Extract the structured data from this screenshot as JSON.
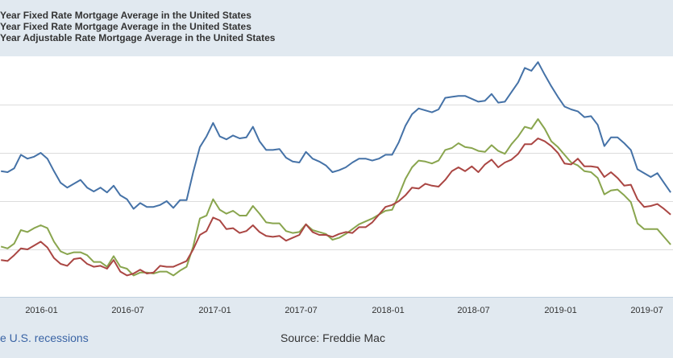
{
  "legend": [
    "Year Fixed Rate Mortgage Average in the United States",
    "Year Fixed Rate Mortgage Average in the United States",
    "Year Adjustable Rate Mortgage Average in the United States"
  ],
  "footer": {
    "recessions_link": "e U.S. recessions",
    "source": "Source: Freddie Mac"
  },
  "chart_data": {
    "type": "line",
    "title": "",
    "xlabel": "",
    "ylabel": "",
    "xlim": [
      "2015-10-06",
      "2019-08-27"
    ],
    "ylim": [
      2.5,
      5.0
    ],
    "grid": true,
    "y_gridlines": [
      3.0,
      3.5,
      4.0,
      4.5
    ],
    "legend_position": "top-left",
    "x_ticks": [
      {
        "date": "2016-01-01",
        "label": "2016-01"
      },
      {
        "date": "2016-07-01",
        "label": "2016-07"
      },
      {
        "date": "2017-01-01",
        "label": "2017-01"
      },
      {
        "date": "2017-07-01",
        "label": "2017-07"
      },
      {
        "date": "2018-01-01",
        "label": "2018-01"
      },
      {
        "date": "2018-07-01",
        "label": "2018-07"
      },
      {
        "date": "2019-01-01",
        "label": "2019-01"
      },
      {
        "date": "2019-07-01",
        "label": "2019-07"
      }
    ],
    "x": [
      "2015-10-08",
      "2015-10-22",
      "2015-11-05",
      "2015-11-19",
      "2015-12-03",
      "2015-12-17",
      "2015-12-31",
      "2016-01-14",
      "2016-01-28",
      "2016-02-11",
      "2016-02-25",
      "2016-03-10",
      "2016-03-24",
      "2016-04-07",
      "2016-04-21",
      "2016-05-05",
      "2016-05-19",
      "2016-06-02",
      "2016-06-16",
      "2016-06-30",
      "2016-07-14",
      "2016-07-28",
      "2016-08-11",
      "2016-08-25",
      "2016-09-08",
      "2016-09-22",
      "2016-10-06",
      "2016-10-20",
      "2016-11-03",
      "2016-11-17",
      "2016-12-01",
      "2016-12-15",
      "2016-12-29",
      "2017-01-12",
      "2017-01-26",
      "2017-02-09",
      "2017-02-23",
      "2017-03-09",
      "2017-03-23",
      "2017-04-06",
      "2017-04-20",
      "2017-05-04",
      "2017-05-18",
      "2017-06-01",
      "2017-06-15",
      "2017-06-29",
      "2017-07-13",
      "2017-07-27",
      "2017-08-10",
      "2017-08-24",
      "2017-09-07",
      "2017-09-21",
      "2017-10-05",
      "2017-10-19",
      "2017-11-02",
      "2017-11-16",
      "2017-11-30",
      "2017-12-14",
      "2017-12-28",
      "2018-01-11",
      "2018-01-25",
      "2018-02-08",
      "2018-02-22",
      "2018-03-08",
      "2018-03-22",
      "2018-04-05",
      "2018-04-19",
      "2018-05-03",
      "2018-05-17",
      "2018-05-31",
      "2018-06-14",
      "2018-06-28",
      "2018-07-12",
      "2018-07-26",
      "2018-08-09",
      "2018-08-23",
      "2018-09-06",
      "2018-09-20",
      "2018-10-04",
      "2018-10-18",
      "2018-11-01",
      "2018-11-15",
      "2018-11-29",
      "2018-12-13",
      "2018-12-27",
      "2019-01-10",
      "2019-01-24",
      "2019-02-07",
      "2019-02-21",
      "2019-03-07",
      "2019-03-21",
      "2019-04-04",
      "2019-04-18",
      "2019-05-02",
      "2019-05-16",
      "2019-05-30",
      "2019-06-13",
      "2019-06-27",
      "2019-07-11",
      "2019-07-25",
      "2019-08-08",
      "2019-08-22"
    ],
    "series": [
      {
        "legend_index": 0,
        "color": "#4572a7",
        "values": [
          3.81,
          3.8,
          3.84,
          3.98,
          3.94,
          3.96,
          4.0,
          3.94,
          3.81,
          3.69,
          3.64,
          3.68,
          3.72,
          3.64,
          3.6,
          3.64,
          3.59,
          3.66,
          3.56,
          3.52,
          3.42,
          3.48,
          3.44,
          3.44,
          3.46,
          3.5,
          3.43,
          3.51,
          3.51,
          3.8,
          4.06,
          4.17,
          4.31,
          4.17,
          4.14,
          4.18,
          4.15,
          4.16,
          4.27,
          4.12,
          4.03,
          4.03,
          4.04,
          3.95,
          3.91,
          3.9,
          4.01,
          3.94,
          3.91,
          3.87,
          3.8,
          3.82,
          3.85,
          3.9,
          3.94,
          3.94,
          3.92,
          3.94,
          3.98,
          3.98,
          4.11,
          4.28,
          4.4,
          4.46,
          4.44,
          4.42,
          4.45,
          4.57,
          4.58,
          4.59,
          4.59,
          4.56,
          4.53,
          4.54,
          4.61,
          4.52,
          4.53,
          4.63,
          4.73,
          4.88,
          4.85,
          4.94,
          4.81,
          4.69,
          4.58,
          4.48,
          4.45,
          4.43,
          4.37,
          4.38,
          4.29,
          4.07,
          4.16,
          4.16,
          4.1,
          4.03,
          3.83,
          3.79,
          3.75,
          3.79,
          3.69,
          3.59
        ]
      },
      {
        "legend_index": 1,
        "color": "#89a54e",
        "values": [
          3.03,
          3.01,
          3.06,
          3.2,
          3.18,
          3.22,
          3.25,
          3.22,
          3.08,
          2.98,
          2.95,
          2.97,
          2.97,
          2.94,
          2.87,
          2.87,
          2.82,
          2.93,
          2.82,
          2.8,
          2.73,
          2.76,
          2.76,
          2.75,
          2.77,
          2.77,
          2.73,
          2.78,
          2.82,
          3.03,
          3.32,
          3.35,
          3.52,
          3.41,
          3.37,
          3.4,
          3.35,
          3.35,
          3.45,
          3.37,
          3.28,
          3.27,
          3.27,
          3.19,
          3.17,
          3.18,
          3.26,
          3.2,
          3.18,
          3.16,
          3.1,
          3.12,
          3.16,
          3.21,
          3.26,
          3.29,
          3.32,
          3.36,
          3.4,
          3.41,
          3.56,
          3.73,
          3.85,
          3.92,
          3.91,
          3.89,
          3.92,
          4.03,
          4.05,
          4.1,
          4.06,
          4.05,
          4.02,
          4.01,
          4.08,
          4.02,
          3.99,
          4.09,
          4.17,
          4.27,
          4.25,
          4.35,
          4.25,
          4.12,
          4.06,
          3.98,
          3.9,
          3.87,
          3.81,
          3.8,
          3.74,
          3.57,
          3.61,
          3.62,
          3.56,
          3.49,
          3.27,
          3.21,
          3.21,
          3.21,
          3.13,
          3.05
        ]
      },
      {
        "legend_index": 2,
        "color": "#aa4643",
        "values": [
          2.89,
          2.88,
          2.94,
          3.01,
          3.0,
          3.04,
          3.08,
          3.02,
          2.91,
          2.85,
          2.83,
          2.9,
          2.91,
          2.85,
          2.82,
          2.83,
          2.8,
          2.89,
          2.77,
          2.73,
          2.75,
          2.79,
          2.75,
          2.76,
          2.83,
          2.82,
          2.82,
          2.85,
          2.88,
          3.0,
          3.15,
          3.19,
          3.33,
          3.3,
          3.21,
          3.22,
          3.17,
          3.19,
          3.25,
          3.18,
          3.14,
          3.13,
          3.14,
          3.09,
          3.12,
          3.15,
          3.26,
          3.18,
          3.15,
          3.15,
          3.13,
          3.16,
          3.18,
          3.17,
          3.23,
          3.23,
          3.28,
          3.36,
          3.44,
          3.46,
          3.5,
          3.56,
          3.64,
          3.63,
          3.68,
          3.66,
          3.65,
          3.72,
          3.81,
          3.85,
          3.81,
          3.86,
          3.8,
          3.88,
          3.93,
          3.85,
          3.9,
          3.93,
          3.99,
          4.09,
          4.09,
          4.15,
          4.12,
          4.07,
          4.0,
          3.89,
          3.88,
          3.94,
          3.86,
          3.86,
          3.85,
          3.75,
          3.8,
          3.74,
          3.66,
          3.67,
          3.52,
          3.44,
          3.45,
          3.47,
          3.42,
          3.36
        ]
      }
    ]
  }
}
